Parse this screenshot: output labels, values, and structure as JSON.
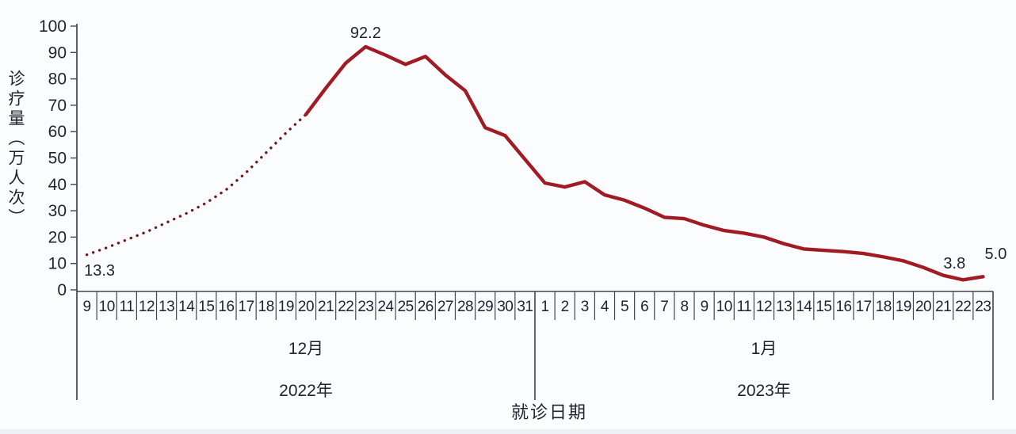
{
  "chart_data": {
    "type": "line",
    "title": "",
    "xlabel": "就诊日期",
    "ylabel": "诊疗量（万人次）",
    "ylim": [
      0,
      100
    ],
    "ytick_step": 10,
    "ytick_labels": [
      "0",
      "10",
      "20",
      "30",
      "40",
      "50",
      "60",
      "70",
      "80",
      "90",
      "100"
    ],
    "x_days": [
      "9",
      "10",
      "11",
      "12",
      "13",
      "14",
      "15",
      "16",
      "17",
      "18",
      "19",
      "20",
      "21",
      "22",
      "23",
      "24",
      "25",
      "26",
      "27",
      "28",
      "29",
      "30",
      "31",
      "1",
      "2",
      "3",
      "4",
      "5",
      "6",
      "7",
      "8",
      "9",
      "10",
      "11",
      "12",
      "13",
      "14",
      "15",
      "16",
      "17",
      "18",
      "19",
      "20",
      "21",
      "22",
      "23"
    ],
    "x_groups": [
      {
        "month": "12月",
        "year": "2022年",
        "span": [
          0,
          22
        ]
      },
      {
        "month": "1月",
        "year": "2023年",
        "span": [
          23,
          45
        ]
      }
    ],
    "series": [
      {
        "values": [
          13.3,
          16,
          19,
          22,
          25.5,
          29,
          33,
          38,
          44.5,
          52,
          59.5,
          66.5,
          76.5,
          86,
          92.2,
          89,
          85.5,
          88.5,
          81.5,
          75.5,
          61.5,
          58.5,
          49.5,
          40.5,
          39,
          41,
          36,
          34,
          31,
          27.5,
          27,
          24.5,
          22.5,
          21.5,
          20,
          17.5,
          15.5,
          15,
          14.5,
          13.8,
          12.5,
          11,
          8.5,
          5.5,
          3.8,
          5.0
        ]
      }
    ],
    "line_styles": {
      "dotted_range": [
        0,
        11
      ],
      "solid_range": [
        11,
        45
      ]
    },
    "annotations": [
      {
        "text": "13.3",
        "index": 0,
        "value": 13.3,
        "placement": "below-left"
      },
      {
        "text": "92.2",
        "index": 14,
        "value": 92.2,
        "placement": "above"
      },
      {
        "text": "3.8",
        "index": 44,
        "value": 3.8,
        "placement": "above-left"
      },
      {
        "text": "5.0",
        "index": 45,
        "value": 5.0,
        "placement": "above-right"
      }
    ],
    "legend": {
      "visible": false
    },
    "grid": false,
    "colors": {
      "solid_line": "#a01b24",
      "dotted_line": "#6d191f",
      "axis": "#3f4450",
      "text": "#1e232e",
      "background": "#fbfcfe"
    }
  }
}
